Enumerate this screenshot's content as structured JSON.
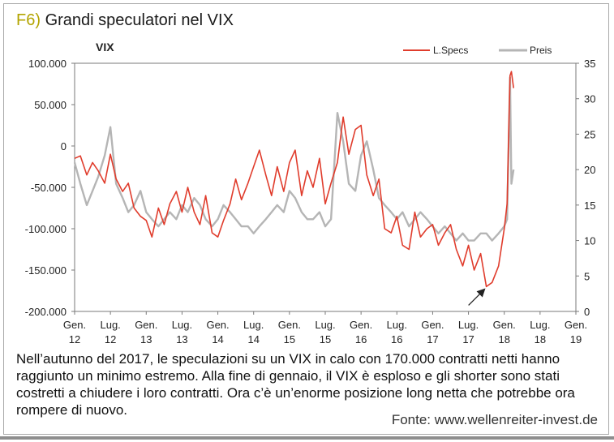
{
  "figure": {
    "label": "F6)",
    "title": "Grandi speculatori nel VIX",
    "caption": "Nell’autunno del 2017, le speculazioni su un VIX in calo con 170.000 contratti netti hanno raggiunto un minimo estremo. Alla fine di gennaio, il VIX è esploso e gli shorter sono stati costretti a chiudere i loro contratti. Ora c’è un’enorme posizione long netta che potrebbe ora rompere di nuovo.",
    "source": "Fonte: www.wellenreiter-invest.de"
  },
  "chart_data": {
    "type": "line",
    "title": "VIX",
    "legend": [
      "L.Specs",
      "Preis"
    ],
    "legend_position": "top-right",
    "grid": false,
    "colors": {
      "L.Specs": "#e03c2c",
      "Preis": "#b5b5b5"
    },
    "left_axis": {
      "ylim": [
        -200000,
        100000
      ],
      "ticks": [
        100000,
        50000,
        0,
        -50000,
        -100000,
        -150000,
        -200000
      ],
      "tick_labels": [
        "100.000",
        "50.000",
        "0",
        "-50.000",
        "-100.000",
        "-150.000",
        "-200.000"
      ]
    },
    "right_axis": {
      "ylim": [
        0,
        35
      ],
      "ticks": [
        35,
        30,
        25,
        20,
        15,
        10,
        5,
        0
      ],
      "tick_labels": [
        "35",
        "30",
        "25",
        "20",
        "15",
        "10",
        "5",
        "0"
      ]
    },
    "x_axis": {
      "range": [
        2012.0,
        2019.0
      ],
      "ticks": [
        2012.0,
        2012.5,
        2013.0,
        2013.5,
        2014.0,
        2014.5,
        2015.0,
        2015.5,
        2016.0,
        2016.5,
        2017.0,
        2017.5,
        2018.0,
        2018.5,
        2019.0
      ],
      "tick_labels": [
        [
          "Gen.",
          "12"
        ],
        [
          "Lug.",
          "12"
        ],
        [
          "Gen.",
          "13"
        ],
        [
          "Lug.",
          "13"
        ],
        [
          "Gen.",
          "14"
        ],
        [
          "Lug.",
          "14"
        ],
        [
          "Gen.",
          "15"
        ],
        [
          "Lug.",
          "15"
        ],
        [
          "Gen.",
          "16"
        ],
        [
          "Lug.",
          "16"
        ],
        [
          "Gen.",
          "17"
        ],
        [
          "Lug.",
          "17"
        ],
        [
          "Gen.",
          "18"
        ],
        [
          "Lug.",
          "18"
        ],
        [
          "Gen.",
          "19"
        ]
      ]
    },
    "series": [
      {
        "name": "L.Specs",
        "axis": "left",
        "x": [
          2012.0,
          2012.08,
          2012.17,
          2012.25,
          2012.33,
          2012.42,
          2012.5,
          2012.58,
          2012.67,
          2012.75,
          2012.83,
          2012.92,
          2013.0,
          2013.08,
          2013.17,
          2013.25,
          2013.33,
          2013.42,
          2013.5,
          2013.58,
          2013.67,
          2013.75,
          2013.83,
          2013.92,
          2014.0,
          2014.08,
          2014.17,
          2014.25,
          2014.33,
          2014.42,
          2014.5,
          2014.58,
          2014.67,
          2014.75,
          2014.83,
          2014.92,
          2015.0,
          2015.08,
          2015.17,
          2015.25,
          2015.33,
          2015.42,
          2015.5,
          2015.58,
          2015.67,
          2015.75,
          2015.83,
          2015.92,
          2016.0,
          2016.08,
          2016.17,
          2016.25,
          2016.33,
          2016.42,
          2016.5,
          2016.58,
          2016.67,
          2016.75,
          2016.83,
          2016.92,
          2017.0,
          2017.08,
          2017.17,
          2017.25,
          2017.33,
          2017.42,
          2017.5,
          2017.58,
          2017.67,
          2017.75,
          2017.83,
          2017.92,
          2018.0,
          2018.04,
          2018.08,
          2018.1,
          2018.13
        ],
        "y": [
          -15000,
          -12000,
          -35000,
          -20000,
          -30000,
          -45000,
          -10000,
          -40000,
          -55000,
          -45000,
          -75000,
          -85000,
          -90000,
          -110000,
          -75000,
          -95000,
          -70000,
          -55000,
          -80000,
          -50000,
          -80000,
          -95000,
          -60000,
          -105000,
          -110000,
          -90000,
          -70000,
          -40000,
          -65000,
          -45000,
          -25000,
          -5000,
          -35000,
          -60000,
          -25000,
          -55000,
          -20000,
          -5000,
          -60000,
          -30000,
          -50000,
          -15000,
          -70000,
          -45000,
          -20000,
          35000,
          -10000,
          20000,
          25000,
          -35000,
          -60000,
          -40000,
          -100000,
          -105000,
          -85000,
          -120000,
          -125000,
          -80000,
          -110000,
          -100000,
          -95000,
          -120000,
          -105000,
          -95000,
          -125000,
          -145000,
          -120000,
          -150000,
          -130000,
          -170000,
          -165000,
          -145000,
          -100000,
          -70000,
          85000,
          90000,
          70000
        ]
      },
      {
        "name": "Preis",
        "axis": "right",
        "x": [
          2012.0,
          2012.08,
          2012.17,
          2012.25,
          2012.33,
          2012.42,
          2012.5,
          2012.58,
          2012.67,
          2012.75,
          2012.83,
          2012.92,
          2013.0,
          2013.08,
          2013.17,
          2013.25,
          2013.33,
          2013.42,
          2013.5,
          2013.58,
          2013.67,
          2013.75,
          2013.83,
          2013.92,
          2014.0,
          2014.08,
          2014.17,
          2014.25,
          2014.33,
          2014.42,
          2014.5,
          2014.58,
          2014.67,
          2014.75,
          2014.83,
          2014.92,
          2015.0,
          2015.08,
          2015.17,
          2015.25,
          2015.33,
          2015.42,
          2015.5,
          2015.58,
          2015.67,
          2015.75,
          2015.83,
          2015.92,
          2016.0,
          2016.08,
          2016.17,
          2016.25,
          2016.33,
          2016.42,
          2016.5,
          2016.58,
          2016.67,
          2016.75,
          2016.83,
          2016.92,
          2017.0,
          2017.08,
          2017.17,
          2017.25,
          2017.33,
          2017.42,
          2017.5,
          2017.58,
          2017.67,
          2017.75,
          2017.83,
          2017.92,
          2018.0,
          2018.04,
          2018.08,
          2018.1,
          2018.13
        ],
        "y": [
          21,
          18,
          15,
          17,
          19,
          22,
          26,
          18,
          16,
          14,
          15,
          17,
          14,
          13,
          12,
          13,
          14,
          13,
          15,
          14,
          16,
          15,
          13,
          12,
          13,
          15,
          14,
          13,
          12,
          12,
          11,
          12,
          13,
          14,
          15,
          14,
          17,
          16,
          14,
          13,
          13,
          14,
          12,
          13,
          28,
          24,
          18,
          17,
          22,
          24,
          20,
          16,
          15,
          14,
          13,
          14,
          12,
          13,
          14,
          13,
          12,
          11,
          12,
          11,
          10,
          11,
          10,
          10,
          11,
          11,
          10,
          11,
          12,
          13,
          33,
          18,
          20
        ]
      }
    ],
    "annotation": {
      "type": "arrow",
      "target_x": 2017.75,
      "target_y": -170000,
      "label": ""
    }
  }
}
